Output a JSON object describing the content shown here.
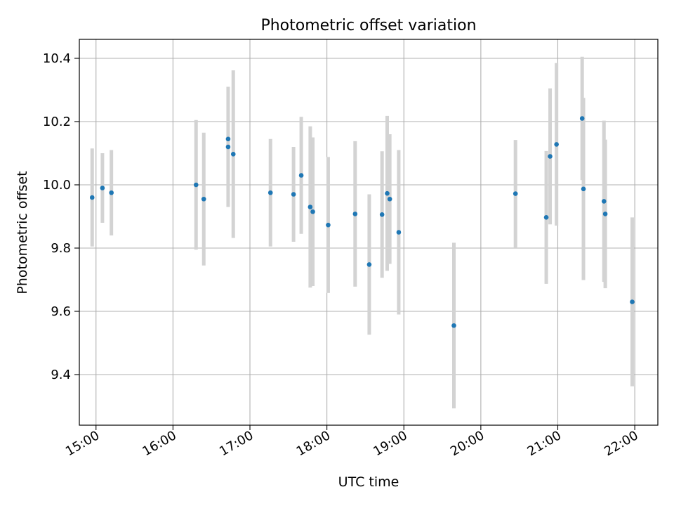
{
  "chart_data": {
    "type": "scatter",
    "title": "Photometric offset variation",
    "xlabel": "UTC time",
    "ylabel": "Photometric offset",
    "x_ticks": [
      "15:00",
      "16:00",
      "17:00",
      "18:00",
      "19:00",
      "20:00",
      "21:00",
      "22:00"
    ],
    "y_ticks": [
      "9.4",
      "9.6",
      "9.8",
      "10.0",
      "10.2",
      "10.4"
    ],
    "xlim": [
      "14:47",
      "22:18"
    ],
    "ylim": [
      9.24,
      10.46
    ],
    "grid": true,
    "legend": "none",
    "colors": {
      "point": "#1f77b4",
      "errorbar": "#d3d3d3",
      "grid": "#b0b0b0"
    },
    "series": [
      {
        "points": [
          {
            "x": "14:57",
            "y": 9.96,
            "yerr": 0.155
          },
          {
            "x": "15:05",
            "y": 9.99,
            "yerr": 0.11
          },
          {
            "x": "15:12",
            "y": 9.975,
            "yerr": 0.135
          },
          {
            "x": "16:18",
            "y": 10.0,
            "yerr": 0.205
          },
          {
            "x": "16:24",
            "y": 9.955,
            "yerr": 0.21
          },
          {
            "x": "16:43",
            "y": 10.145,
            "yerr": 0.0
          },
          {
            "x": "16:43",
            "y": 10.12,
            "yerr": 0.19
          },
          {
            "x": "16:47",
            "y": 10.097,
            "yerr": 0.265
          },
          {
            "x": "17:16",
            "y": 9.975,
            "yerr": 0.17
          },
          {
            "x": "17:34",
            "y": 9.97,
            "yerr": 0.15
          },
          {
            "x": "17:40",
            "y": 10.03,
            "yerr": 0.185
          },
          {
            "x": "17:47",
            "y": 9.93,
            "yerr": 0.255
          },
          {
            "x": "17:49",
            "y": 9.915,
            "yerr": 0.235
          },
          {
            "x": "18:01",
            "y": 9.873,
            "yerr": 0.215
          },
          {
            "x": "18:22",
            "y": 9.908,
            "yerr": 0.23
          },
          {
            "x": "18:33",
            "y": 9.748,
            "yerr": 0.222
          },
          {
            "x": "18:43",
            "y": 9.906,
            "yerr": 0.2
          },
          {
            "x": "18:47",
            "y": 9.973,
            "yerr": 0.245
          },
          {
            "x": "18:49",
            "y": 9.955,
            "yerr": 0.205
          },
          {
            "x": "18:56",
            "y": 9.85,
            "yerr": 0.26
          },
          {
            "x": "19:39",
            "y": 9.555,
            "yerr": 0.262
          },
          {
            "x": "20:27",
            "y": 9.972,
            "yerr": 0.17
          },
          {
            "x": "20:51",
            "y": 9.897,
            "yerr": 0.21
          },
          {
            "x": "20:54",
            "y": 10.09,
            "yerr": 0.215
          },
          {
            "x": "20:59",
            "y": 10.128,
            "yerr": 0.257
          },
          {
            "x": "21:19",
            "y": 10.21,
            "yerr": 0.195
          },
          {
            "x": "21:20",
            "y": 9.987,
            "yerr": 0.288
          },
          {
            "x": "21:36",
            "y": 9.948,
            "yerr": 0.255
          },
          {
            "x": "21:37",
            "y": 9.908,
            "yerr": 0.235
          },
          {
            "x": "21:58",
            "y": 9.63,
            "yerr": 0.267
          }
        ]
      }
    ]
  }
}
